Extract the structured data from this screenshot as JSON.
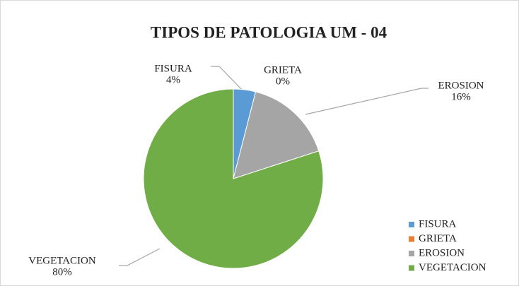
{
  "chart_data": {
    "type": "pie",
    "title": "TIPOS DE PATOLOGIA  UM - 04",
    "categories": [
      "FISURA",
      "GRIETA",
      "EROSION",
      "VEGETACION"
    ],
    "values": [
      4,
      0,
      16,
      80
    ],
    "value_labels": [
      "4%",
      "0%",
      "16%",
      "80%"
    ],
    "colors": [
      "#5b9bd5",
      "#ed7d31",
      "#a5a5a5",
      "#70ad47"
    ],
    "legend": "right"
  }
}
